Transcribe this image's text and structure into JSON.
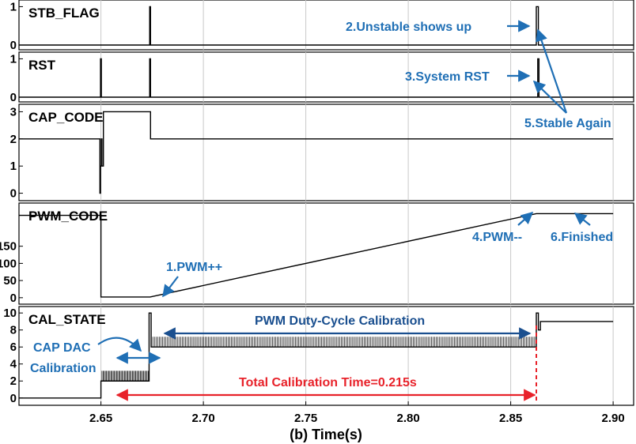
{
  "chart_data": {
    "type": "line",
    "xlabel": "(b) Time(s)",
    "xlim": [
      2.61,
      2.91
    ],
    "xticks": [
      "2.65",
      "2.70",
      "2.75",
      "2.80",
      "2.85",
      "2.90"
    ],
    "colors": {
      "signal": "#000000",
      "grid": "#c8c8c8",
      "blue": "#1f6fb5",
      "red": "#e8222a"
    },
    "panels": [
      {
        "key": "stb",
        "name": "STB_FLAG",
        "ylim": [
          0,
          1.05
        ],
        "yticks": [
          "0",
          "1"
        ],
        "x": [
          2.61,
          2.6738,
          2.6738,
          2.6742,
          2.6742,
          2.8625,
          2.8625,
          2.8635,
          2.8635,
          2.91
        ],
        "y": [
          0,
          0,
          1,
          1,
          0,
          0,
          1,
          1,
          0,
          0
        ]
      },
      {
        "key": "rst",
        "name": "RST",
        "ylim": [
          0,
          1.05
        ],
        "yticks": [
          "0",
          "1"
        ],
        "x": [
          2.61,
          2.6498,
          2.6498,
          2.6502,
          2.6502,
          2.6738,
          2.6738,
          2.6742,
          2.6742,
          2.8632,
          2.8632,
          2.8638,
          2.8638,
          2.91
        ],
        "y": [
          0,
          0,
          1,
          1,
          0,
          0,
          1,
          1,
          0,
          0,
          1,
          1,
          0,
          0
        ]
      },
      {
        "key": "cap",
        "name": "CAP_CODE",
        "ylim": [
          -0.1,
          3.1
        ],
        "yticks": [
          "0",
          "1",
          "2",
          "3"
        ],
        "x": [
          2.61,
          2.6495,
          2.6495,
          2.6498,
          2.6498,
          2.6502,
          2.6502,
          2.6505,
          2.6505,
          2.6512,
          2.6512,
          2.6742,
          2.6742,
          2.9
        ],
        "y": [
          2,
          2,
          0,
          0,
          1,
          1,
          2,
          2,
          1,
          1,
          3,
          3,
          2,
          2
        ]
      },
      {
        "key": "pwm",
        "name": "PWM_CODE",
        "ylim": [
          -5,
          262
        ],
        "yticks": [
          "0",
          "50",
          "100",
          "150"
        ],
        "x": [
          2.61,
          2.65,
          2.65,
          2.674,
          2.8625,
          2.9
        ],
        "y": [
          240,
          240,
          2,
          2,
          245,
          245
        ]
      },
      {
        "key": "cal",
        "name": "CAL_STATE",
        "ylim": [
          -0.3,
          10.2
        ],
        "yticks": [
          "0",
          "2",
          "4",
          "6",
          "8",
          "10"
        ],
        "x": [
          2.61,
          2.65,
          2.65,
          2.6735,
          2.6735,
          2.6745,
          2.6745,
          2.8625,
          2.8625,
          2.8635,
          2.8635,
          2.8645,
          2.8645,
          2.9
        ],
        "y": [
          0,
          0,
          2,
          2,
          10,
          10,
          6,
          6,
          10,
          10,
          8,
          8,
          9,
          9
        ],
        "hatch": [
          {
            "x0": 2.6505,
            "x1": 2.6735,
            "y_low": 2,
            "y_high": 3.2,
            "step": 0.00055
          },
          {
            "x0": 2.6745,
            "x1": 2.8625,
            "y_low": 6,
            "y_high": 7.2,
            "step": 0.0008
          }
        ]
      }
    ],
    "annotations": [
      {
        "text": "2.Unstable shows up"
      },
      {
        "text": "3.System RST"
      },
      {
        "text": "5.Stable Again"
      },
      {
        "text": "1.PWM++"
      },
      {
        "text": "4.PWM--"
      },
      {
        "text": "6.Finished"
      },
      {
        "text": "PWM Duty-Cycle Calibration"
      },
      {
        "text": "CAP DAC"
      },
      {
        "text": "Calibration"
      },
      {
        "text": "Total Calibration Time=0.215s"
      }
    ]
  }
}
